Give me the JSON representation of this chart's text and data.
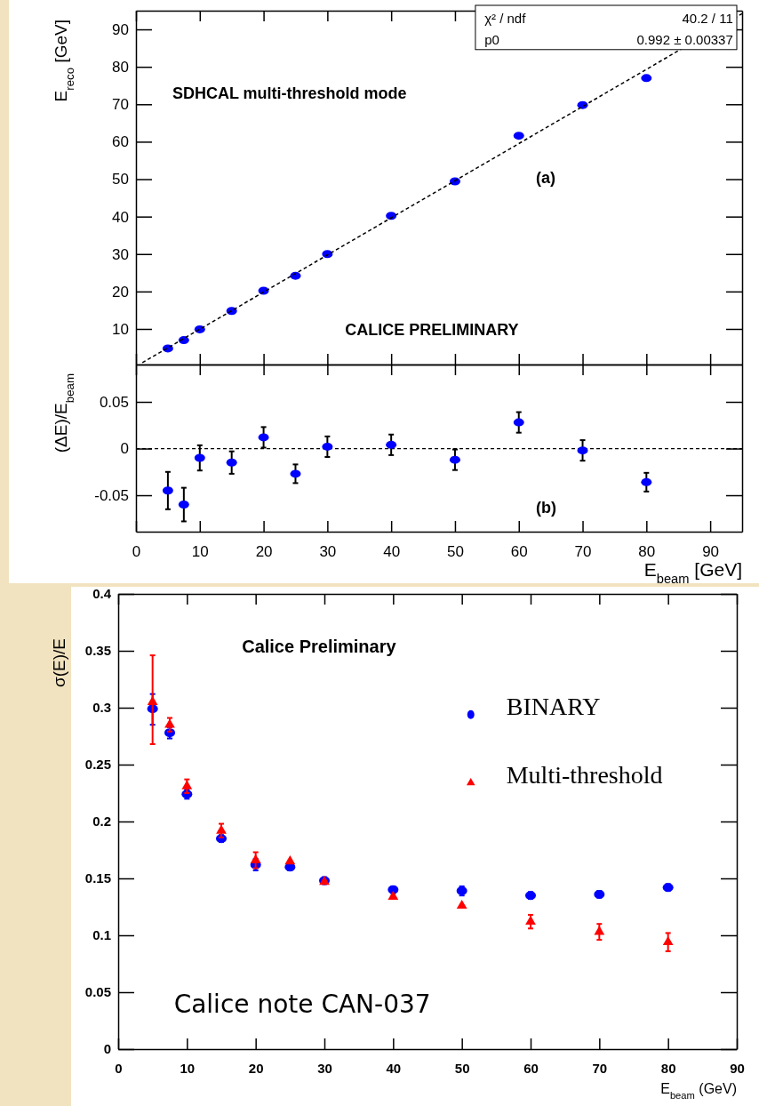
{
  "chart_data": [
    {
      "type": "scatter",
      "ylabel": "E$_{reco}$ [GeV]",
      "xlim": [
        0,
        95
      ],
      "xticks": [
        0,
        10,
        20,
        30,
        40,
        50,
        60,
        70,
        80,
        90
      ],
      "ylim": [
        0.5,
        95
      ],
      "yticks": [
        10,
        20,
        30,
        40,
        50,
        60,
        70,
        80,
        90
      ],
      "tick_labels": "y",
      "grid": false,
      "legend": false,
      "annotations": [
        "SDHCAL multi-threshold mode",
        "(a)",
        "CALICE PRELIMINARY",
        "χ² / ndf",
        "40.2 / 11",
        "p0",
        "0.992 ± 0.00337"
      ],
      "series": [
        {
          "marker": "circle",
          "color": "#0000ff",
          "x": [
            5,
            7.5,
            10,
            15,
            20,
            25,
            30,
            40,
            50,
            60,
            70,
            80
          ],
          "values": [
            4.8,
            7.0,
            9.9,
            14.8,
            20.2,
            24.2,
            30,
            40.2,
            49.4,
            61.6,
            69.8,
            77.0
          ]
        },
        {
          "type": "line",
          "line_style": "dashed",
          "color": "#000000",
          "x": [
            1,
            95
          ],
          "values": [
            1,
            94.2
          ]
        }
      ]
    },
    {
      "type": "scatter",
      "ylabel": "(ΔE)/E$_{beam}$",
      "xlabel": "E$_{beam}$ [GeV]",
      "xlim": [
        0,
        95
      ],
      "xticks": [
        0,
        10,
        20,
        30,
        40,
        50,
        60,
        70,
        80,
        90
      ],
      "ylim": [
        -0.089,
        0.09
      ],
      "yticks": [
        -0.05,
        0,
        0.05
      ],
      "grid": false,
      "legend": false,
      "marker": "circle",
      "annotations": [
        "(b)"
      ],
      "ref_lines": [
        {
          "axis": "y",
          "value": 0,
          "line_style": "dashed",
          "color": "#000000"
        }
      ],
      "series": [
        {
          "color": "#0000ff",
          "x": [
            5,
            7.5,
            10,
            15,
            20,
            25,
            30,
            40,
            50,
            60,
            70,
            80
          ],
          "values": [
            -0.045,
            -0.06,
            -0.01,
            -0.015,
            0.012,
            -0.027,
            0.002,
            0.004,
            -0.012,
            0.028,
            -0.002,
            -0.036
          ],
          "errors": [
            0.02,
            0.018,
            0.0135,
            0.012,
            0.011,
            0.01,
            0.011,
            0.011,
            0.011,
            0.011,
            0.011,
            0.01
          ]
        }
      ]
    },
    {
      "type": "scatter",
      "ylabel": "σ(E)/E",
      "xlabel": "E$_{beam}$ (GeV)",
      "xlim": [
        0,
        90
      ],
      "xticks": [
        0,
        10,
        20,
        30,
        40,
        50,
        60,
        70,
        80,
        90
      ],
      "ylim": [
        0,
        0.4
      ],
      "yticks": [
        0,
        0.05,
        0.1,
        0.15,
        0.2,
        0.25,
        0.3,
        0.35,
        0.4
      ],
      "grid": false,
      "legend": "right",
      "annotations": [
        "Calice Preliminary",
        "Calice note CAN-037"
      ],
      "series": [
        {
          "name": "BINARY",
          "marker": "circle",
          "color": "#0000ff",
          "x": [
            5,
            7.5,
            10,
            15,
            20,
            25,
            30,
            40,
            50,
            60,
            70,
            80
          ],
          "values": [
            0.299,
            0.278,
            0.224,
            0.185,
            0.162,
            0.16,
            0.148,
            0.14,
            0.139,
            0.135,
            0.136,
            0.142
          ],
          "errors": [
            [
              0.285,
              0.312
            ],
            0.005,
            0.004,
            0.003,
            0.005,
            0.003,
            0.003,
            0.003,
            0.004,
            0.003,
            0.003,
            0.003
          ]
        },
        {
          "name": "Multi-threshold",
          "marker": "triangle",
          "color": "#ff0000",
          "x": [
            5,
            7.5,
            10,
            15,
            20,
            25,
            30,
            40,
            50,
            60,
            70,
            80
          ],
          "values": [
            0.305,
            0.285,
            0.231,
            0.192,
            0.166,
            0.165,
            0.147,
            0.134,
            0.126,
            0.112,
            0.103,
            0.094
          ],
          "errors": [
            [
              0.268,
              0.346
            ],
            0.006,
            0.006,
            0.006,
            0.007,
            null,
            null,
            null,
            null,
            0.006,
            0.007,
            0.008
          ]
        }
      ]
    }
  ]
}
